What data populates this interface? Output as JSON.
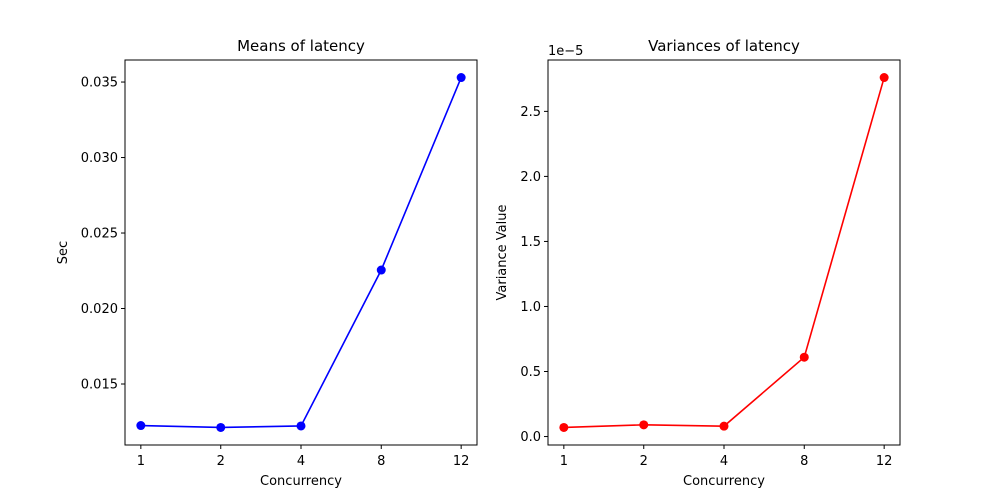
{
  "chart_data": [
    {
      "type": "line",
      "title": "Means of latency",
      "xlabel": "Concurrency",
      "ylabel": "Sec",
      "categories": [
        "1",
        "2",
        "4",
        "8",
        "12"
      ],
      "series": [
        {
          "values": [
            0.01225,
            0.01212,
            0.01222,
            0.02255,
            0.0353
          ],
          "color": "#0000ff",
          "marker": "circle"
        }
      ],
      "y_ticks": [
        "0.015",
        "0.020",
        "0.025",
        "0.030",
        "0.035"
      ],
      "y_tick_values": [
        0.015,
        0.02,
        0.025,
        0.03,
        0.035
      ],
      "ylim": [
        0.01096,
        0.03646
      ],
      "grid": false
    },
    {
      "type": "line",
      "title": "Variances of latency",
      "xlabel": "Concurrency",
      "ylabel": "Variance Value",
      "y_offset_label": "1e−5",
      "categories": [
        "1",
        "2",
        "4",
        "8",
        "12"
      ],
      "series": [
        {
          "values": [
            0.07,
            0.09,
            0.08,
            0.61,
            2.76
          ],
          "color": "#ff0000",
          "marker": "circle"
        }
      ],
      "y_ticks": [
        "0.0",
        "0.5",
        "1.0",
        "1.5",
        "2.0",
        "2.5"
      ],
      "y_tick_values": [
        0.0,
        0.5,
        1.0,
        1.5,
        2.0,
        2.5
      ],
      "ylim": [
        -0.065,
        2.895
      ],
      "grid": false
    }
  ]
}
